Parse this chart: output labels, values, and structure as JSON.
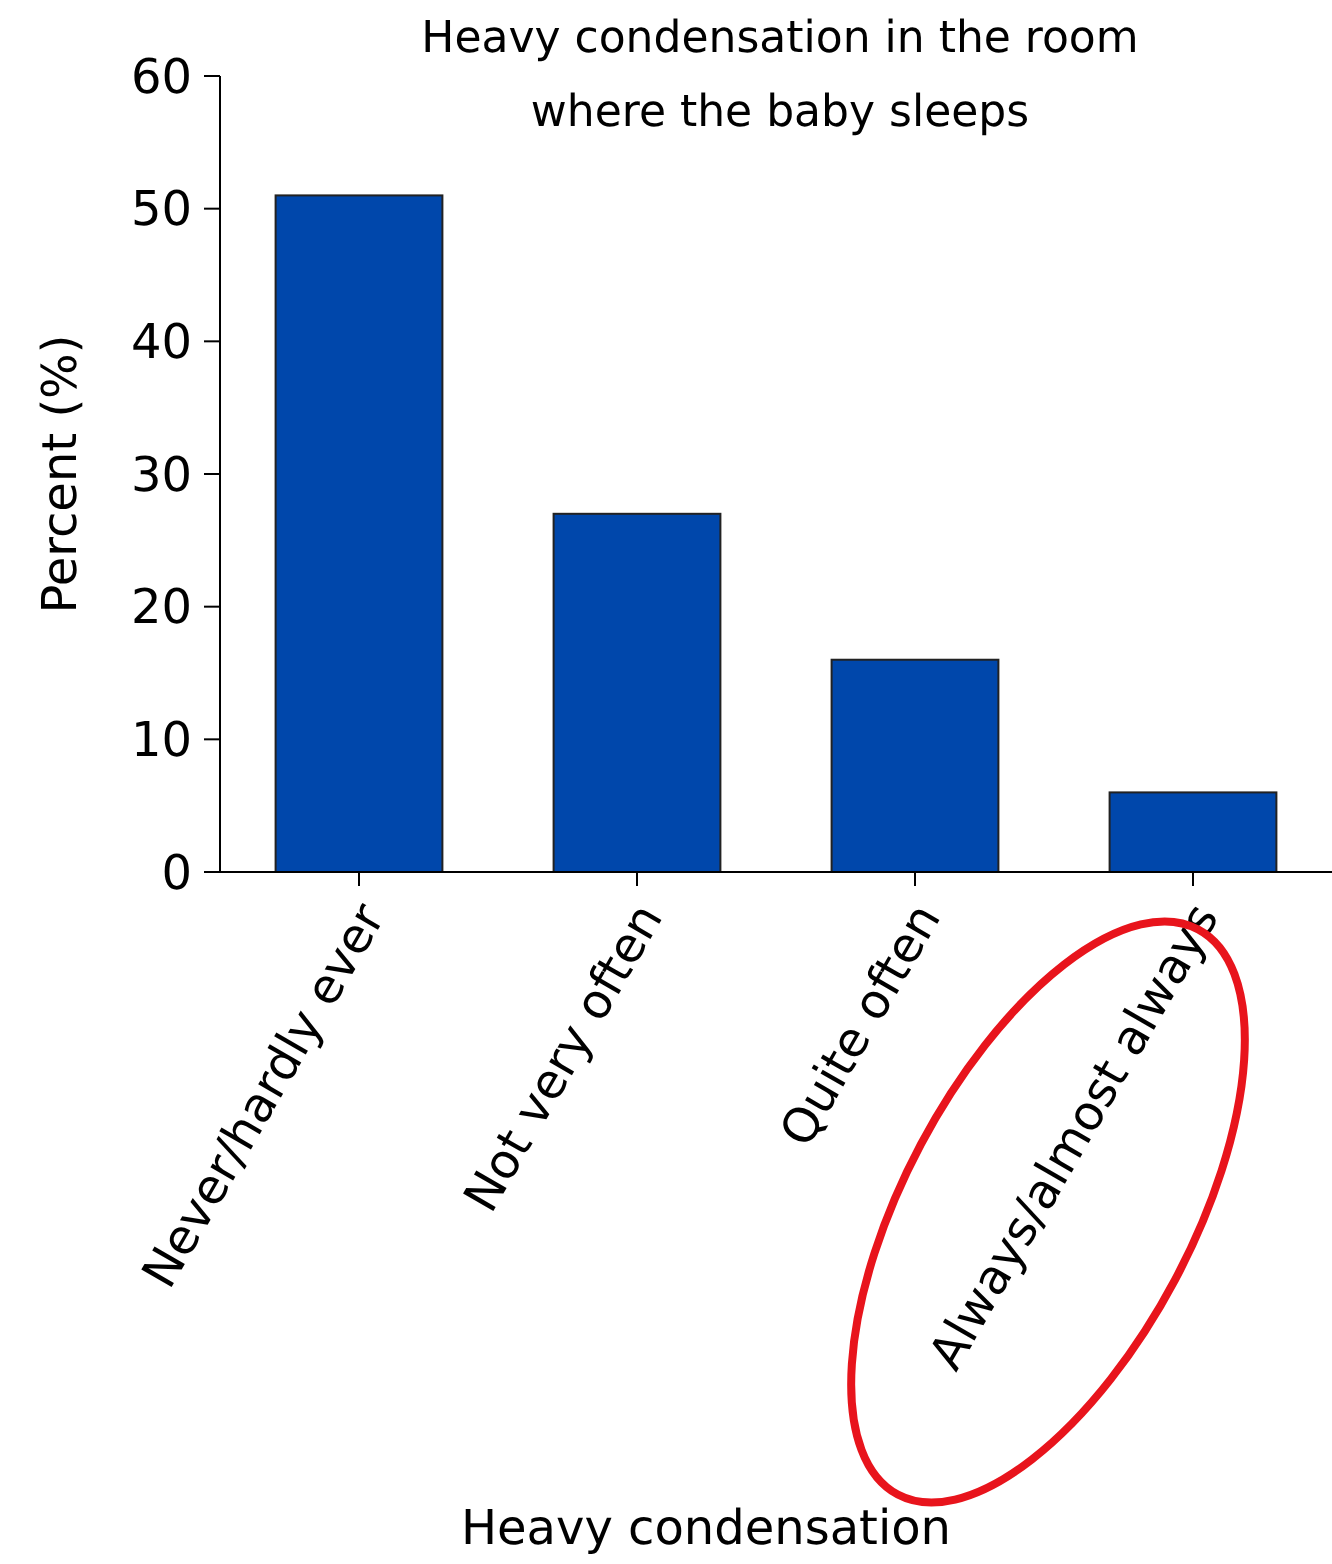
{
  "chart_data": {
    "type": "bar",
    "title": "Heavy condensation in the room where the baby sleeps",
    "xlabel": "Heavy condensation",
    "ylabel": "Percent (%)",
    "categories": [
      "Never/hardly ever",
      "Not very often",
      "Quite often",
      "Always/almost always"
    ],
    "values": [
      51,
      27,
      16,
      6
    ],
    "color": "#0047ab",
    "ylim": [
      0,
      60
    ],
    "yticks": [
      0,
      10,
      20,
      30,
      40,
      50,
      60
    ],
    "grid": false
  }
}
